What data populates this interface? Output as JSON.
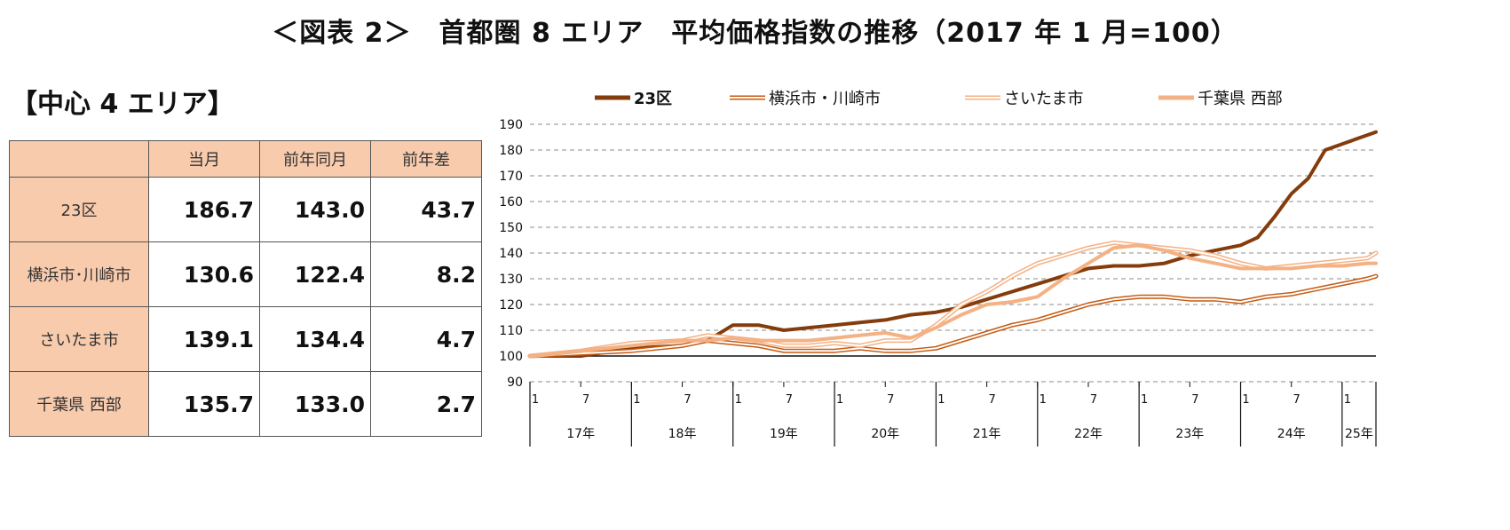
{
  "title": "＜図表 2＞　首都圏 8 エリア　平均価格指数の推移（2017 年 1 月=100）",
  "section": "【中心 4 エリア】",
  "table": {
    "headers": [
      "",
      "当月",
      "前年同月",
      "前年差"
    ],
    "rows": [
      {
        "label": "23区",
        "current": "186.7",
        "prev_year": "143.0",
        "diff": "43.7"
      },
      {
        "label": "横浜市･川崎市",
        "current": "130.6",
        "prev_year": "122.4",
        "diff": "8.2"
      },
      {
        "label": "さいたま市",
        "current": "139.1",
        "prev_year": "134.4",
        "diff": "4.7"
      },
      {
        "label": "千葉県 西部",
        "current": "135.7",
        "prev_year": "133.0",
        "diff": "2.7"
      }
    ]
  },
  "chart_data": {
    "type": "line",
    "ylim": [
      90,
      190
    ],
    "yticks": [
      90,
      100,
      110,
      120,
      130,
      140,
      150,
      160,
      170,
      180,
      190
    ],
    "grid": "dashed horizontal",
    "legend_position": "top",
    "month_ticks": [
      "1",
      "7",
      "1",
      "7",
      "1",
      "7",
      "1",
      "7",
      "1",
      "7",
      "1",
      "7",
      "1",
      "7",
      "1",
      "7",
      "1"
    ],
    "year_labels": [
      "17年",
      "18年",
      "19年",
      "20年",
      "21年",
      "22年",
      "23年",
      "24年",
      "25年"
    ],
    "x_note": "monthly from 2017-01 to 2025-05; anchor values given at the listed month indices (0 = 2017-01)",
    "series": [
      {
        "name": "23区",
        "color": "#843c0c",
        "style": "thick",
        "points": [
          [
            0,
            100
          ],
          [
            6,
            100
          ],
          [
            12,
            103
          ],
          [
            18,
            104
          ],
          [
            21,
            106
          ],
          [
            24,
            112
          ],
          [
            27,
            112
          ],
          [
            30,
            110
          ],
          [
            33,
            111
          ],
          [
            36,
            112
          ],
          [
            39,
            113
          ],
          [
            42,
            114
          ],
          [
            45,
            116
          ],
          [
            48,
            117
          ],
          [
            51,
            119
          ],
          [
            54,
            122
          ],
          [
            57,
            125
          ],
          [
            60,
            128
          ],
          [
            63,
            131
          ],
          [
            66,
            134
          ],
          [
            69,
            135
          ],
          [
            72,
            135
          ],
          [
            75,
            136
          ],
          [
            78,
            139
          ],
          [
            81,
            141
          ],
          [
            84,
            143
          ],
          [
            86,
            146
          ],
          [
            88,
            154
          ],
          [
            90,
            163
          ],
          [
            92,
            169
          ],
          [
            94,
            180
          ],
          [
            100,
            187
          ]
        ]
      },
      {
        "name": "横浜市・川崎市",
        "color": "#c55a11",
        "style": "double",
        "points": [
          [
            0,
            100
          ],
          [
            6,
            101
          ],
          [
            12,
            102
          ],
          [
            18,
            104
          ],
          [
            21,
            106
          ],
          [
            24,
            105
          ],
          [
            27,
            104
          ],
          [
            30,
            102
          ],
          [
            33,
            102
          ],
          [
            36,
            102
          ],
          [
            39,
            103
          ],
          [
            42,
            102
          ],
          [
            45,
            102
          ],
          [
            48,
            103
          ],
          [
            51,
            106
          ],
          [
            54,
            109
          ],
          [
            57,
            112
          ],
          [
            60,
            114
          ],
          [
            63,
            117
          ],
          [
            66,
            120
          ],
          [
            69,
            122
          ],
          [
            72,
            123
          ],
          [
            75,
            123
          ],
          [
            78,
            122
          ],
          [
            81,
            122
          ],
          [
            84,
            121
          ],
          [
            87,
            123
          ],
          [
            90,
            124
          ],
          [
            93,
            126
          ],
          [
            96,
            128
          ],
          [
            99,
            130
          ],
          [
            100,
            131
          ]
        ]
      },
      {
        "name": "さいたま市",
        "color": "#f4b183",
        "style": "double",
        "points": [
          [
            0,
            100
          ],
          [
            6,
            102
          ],
          [
            12,
            105
          ],
          [
            18,
            106
          ],
          [
            21,
            108
          ],
          [
            24,
            107
          ],
          [
            27,
            106
          ],
          [
            30,
            104
          ],
          [
            33,
            104
          ],
          [
            36,
            105
          ],
          [
            39,
            104
          ],
          [
            42,
            106
          ],
          [
            45,
            106
          ],
          [
            48,
            112
          ],
          [
            51,
            120
          ],
          [
            54,
            125
          ],
          [
            57,
            131
          ],
          [
            60,
            136
          ],
          [
            63,
            139
          ],
          [
            66,
            142
          ],
          [
            69,
            144
          ],
          [
            72,
            143
          ],
          [
            75,
            142
          ],
          [
            78,
            141
          ],
          [
            81,
            139
          ],
          [
            84,
            136
          ],
          [
            87,
            134
          ],
          [
            90,
            135
          ],
          [
            93,
            136
          ],
          [
            96,
            137
          ],
          [
            99,
            138
          ],
          [
            100,
            140
          ]
        ]
      },
      {
        "name": "千葉県 西部",
        "color": "#f4b183",
        "style": "thick",
        "points": [
          [
            0,
            100
          ],
          [
            6,
            102
          ],
          [
            12,
            104
          ],
          [
            18,
            106
          ],
          [
            21,
            106
          ],
          [
            24,
            107
          ],
          [
            27,
            106
          ],
          [
            30,
            106
          ],
          [
            33,
            106
          ],
          [
            36,
            107
          ],
          [
            39,
            108
          ],
          [
            42,
            109
          ],
          [
            45,
            107
          ],
          [
            48,
            111
          ],
          [
            51,
            116
          ],
          [
            54,
            120
          ],
          [
            57,
            121
          ],
          [
            60,
            123
          ],
          [
            63,
            130
          ],
          [
            66,
            136
          ],
          [
            69,
            142
          ],
          [
            72,
            143
          ],
          [
            75,
            141
          ],
          [
            78,
            138
          ],
          [
            81,
            136
          ],
          [
            84,
            134
          ],
          [
            87,
            134
          ],
          [
            90,
            134
          ],
          [
            93,
            135
          ],
          [
            96,
            135
          ],
          [
            99,
            136
          ],
          [
            100,
            136
          ]
        ]
      }
    ]
  }
}
